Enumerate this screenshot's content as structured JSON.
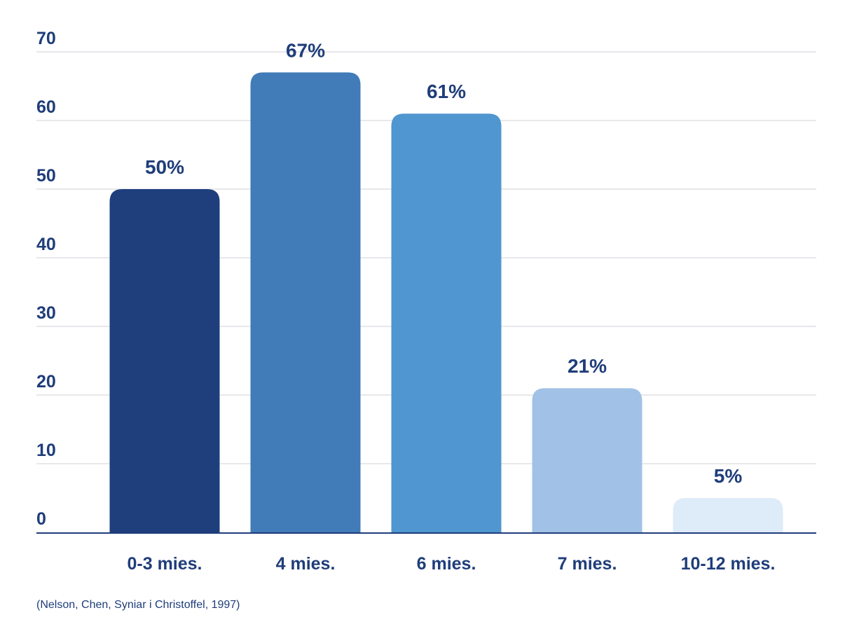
{
  "chart_data": {
    "type": "bar",
    "categories": [
      "0-3 mies.",
      "4 mies.",
      "6 mies.",
      "7 mies.",
      "10-12 mies."
    ],
    "values": [
      50,
      67,
      61,
      21,
      5
    ],
    "data_labels": [
      "50%",
      "67%",
      "61%",
      "21%",
      "5%"
    ],
    "ylim": [
      0,
      70
    ],
    "yticks": [
      0,
      10,
      20,
      30,
      40,
      50,
      60,
      70
    ],
    "grid": true,
    "legend": false
  },
  "source_note": "(Nelson, Chen, Syniar i Christoffel, 1997)",
  "colors": {
    "text": "#1f3d7a",
    "axis": "#1f3d7a",
    "grid": "#e8e8ec",
    "bars": [
      "#1f3f7c",
      "#417bb8",
      "#5096d0",
      "#a1c2e6",
      "#deebf9"
    ]
  }
}
